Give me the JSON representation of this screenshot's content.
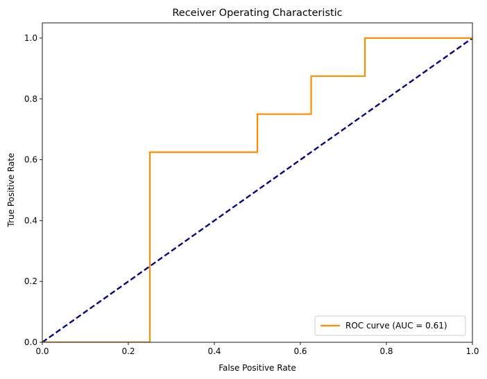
{
  "chart_data": {
    "type": "line",
    "title": "Receiver Operating Characteristic",
    "xlabel": "False Positive Rate",
    "ylabel": "True Positive Rate",
    "xlim": [
      0.0,
      1.0
    ],
    "ylim": [
      0.0,
      1.05
    ],
    "x_ticks": [
      0.0,
      0.2,
      0.4,
      0.6,
      0.8,
      1.0
    ],
    "x_tick_labels": [
      "0.0",
      "0.2",
      "0.4",
      "0.6",
      "0.8",
      "1.0"
    ],
    "y_ticks": [
      0.0,
      0.2,
      0.4,
      0.6,
      0.8,
      1.0
    ],
    "y_tick_labels": [
      "0.0",
      "0.2",
      "0.4",
      "0.6",
      "0.8",
      "1.0"
    ],
    "grid": false,
    "legend_position": "lower-right",
    "series": [
      {
        "name": "ROC curve (AUC = 0.61)",
        "color": "#ff8c00",
        "style": "solid",
        "x": [
          0.0,
          0.0,
          0.25,
          0.25,
          0.5,
          0.5,
          0.625,
          0.625,
          0.75,
          0.75,
          1.0
        ],
        "y": [
          0.0,
          0.0,
          0.0,
          0.625,
          0.625,
          0.75,
          0.75,
          0.875,
          0.875,
          1.0,
          1.0
        ]
      },
      {
        "color": "#000080",
        "style": "dashed",
        "x": [
          0.0,
          1.0
        ],
        "y": [
          0.0,
          1.0
        ]
      }
    ]
  }
}
